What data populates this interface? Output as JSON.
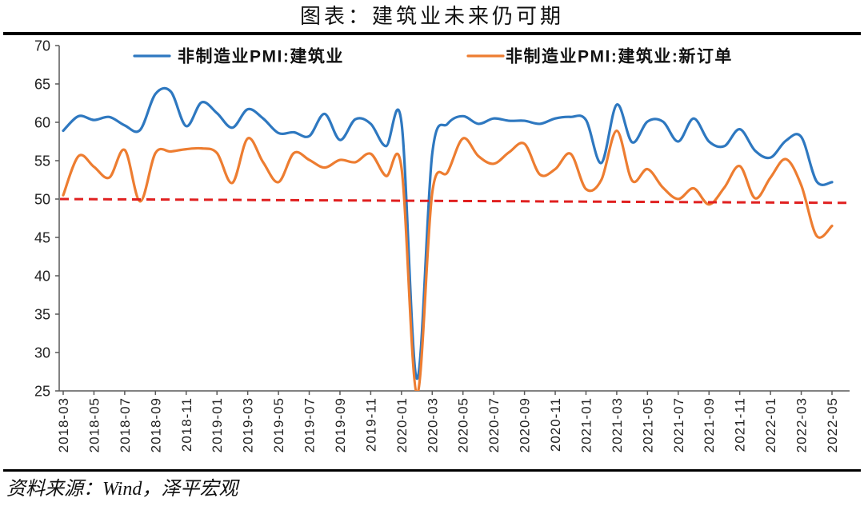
{
  "chart_data": {
    "type": "line",
    "title": "图表：建筑业未来仍可期",
    "x": [
      "2018-03",
      "2018-04",
      "2018-05",
      "2018-06",
      "2018-07",
      "2018-08",
      "2018-09",
      "2018-10",
      "2018-11",
      "2018-12",
      "2019-01",
      "2019-02",
      "2019-03",
      "2019-04",
      "2019-05",
      "2019-06",
      "2019-07",
      "2019-08",
      "2019-09",
      "2019-10",
      "2019-11",
      "2019-12",
      "2020-01",
      "2020-02",
      "2020-03",
      "2020-04",
      "2020-05",
      "2020-06",
      "2020-07",
      "2020-08",
      "2020-09",
      "2020-10",
      "2020-11",
      "2020-12",
      "2021-01",
      "2021-02",
      "2021-03",
      "2021-04",
      "2021-05",
      "2021-06",
      "2021-07",
      "2021-08",
      "2021-09",
      "2021-10",
      "2021-11",
      "2021-12",
      "2022-01",
      "2022-02",
      "2022-03",
      "2022-04",
      "2022-05"
    ],
    "x_ticks": [
      "2018-03",
      "2018-05",
      "2018-07",
      "2018-09",
      "2018-11",
      "2019-01",
      "2019-03",
      "2019-05",
      "2019-07",
      "2019-09",
      "2019-11",
      "2020-01",
      "2020-03",
      "2020-05",
      "2020-07",
      "2020-09",
      "2020-11",
      "2021-01",
      "2021-03",
      "2021-05",
      "2021-07",
      "2021-09",
      "2021-11",
      "2022-01",
      "2022-03",
      "2022-05"
    ],
    "y_ticks": [
      70,
      65,
      60,
      55,
      50,
      45,
      40,
      35,
      30,
      25
    ],
    "ylim": [
      25,
      70
    ],
    "grid": false,
    "legend_position": "top",
    "series": [
      {
        "name": "非制造业PMI:建筑业",
        "color": "#2e78c0",
        "values": [
          58.9,
          60.8,
          60.3,
          60.7,
          59.6,
          59.0,
          63.7,
          64.0,
          59.5,
          62.6,
          61.2,
          59.3,
          61.7,
          60.5,
          58.6,
          58.7,
          58.2,
          61.1,
          57.7,
          60.4,
          59.8,
          56.9,
          60.0,
          26.6,
          55.9,
          59.8,
          60.8,
          59.8,
          60.5,
          60.2,
          60.2,
          59.8,
          60.5,
          60.7,
          60.3,
          54.7,
          62.3,
          57.4,
          60.1,
          60.1,
          57.5,
          60.5,
          57.5,
          56.9,
          59.1,
          56.3,
          55.4,
          57.6,
          58.1,
          52.3,
          52.2
        ]
      },
      {
        "name": "非制造业PMI:建筑业:新订单",
        "color": "#ed7d31",
        "values": [
          50.5,
          55.6,
          54.2,
          52.8,
          56.4,
          49.7,
          56.0,
          56.2,
          56.5,
          56.6,
          56.0,
          52.1,
          57.9,
          54.8,
          52.2,
          56.0,
          55.1,
          54.1,
          55.1,
          54.8,
          55.9,
          53.0,
          54.1,
          24.6,
          50.8,
          53.5,
          57.9,
          55.6,
          54.6,
          56.1,
          57.2,
          53.2,
          53.9,
          55.9,
          51.3,
          52.5,
          58.9,
          52.4,
          53.9,
          51.5,
          50.0,
          51.4,
          49.3,
          51.5,
          54.3,
          50.1,
          52.8,
          55.2,
          51.8,
          45.2,
          46.5
        ]
      }
    ],
    "reference_line": {
      "y_start": 50.0,
      "y_end": 49.5,
      "color": "#e02020",
      "style": "dashed"
    }
  },
  "source": "资料来源：Wind，泽平宏观"
}
